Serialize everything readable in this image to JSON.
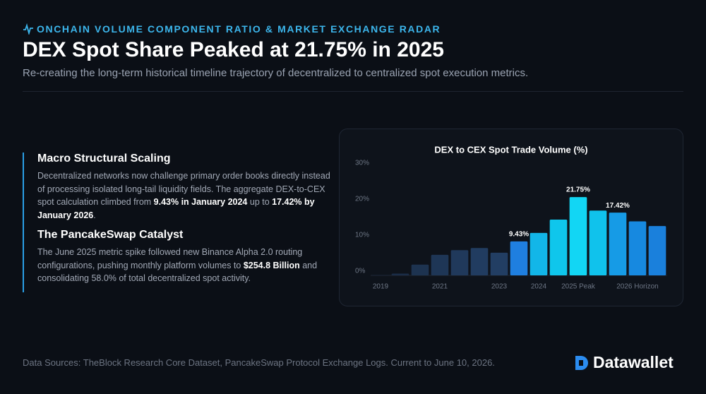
{
  "header": {
    "kicker": "ONCHAIN VOLUME COMPONENT RATIO & MARKET EXCHANGE RADAR",
    "title": "DEX Spot Share Peaked at 21.75% in 2025",
    "subtitle": "Re-creating the long-term historical timeline trajectory of decentralized to centralized spot execution metrics."
  },
  "sections": [
    {
      "heading": "Macro Structural Scaling",
      "runs": [
        {
          "text": "Decentralized networks now challenge primary order books directly instead of processing isolated long-tail liquidity fields. The aggregate DEX-to-CEX spot calculation climbed from ",
          "bold": false
        },
        {
          "text": "9.43% in January 2024",
          "bold": true
        },
        {
          "text": " up to ",
          "bold": false
        },
        {
          "text": "17.42% by January 2026",
          "bold": true
        },
        {
          "text": ".",
          "bold": false
        }
      ]
    },
    {
      "heading": "The PancakeSwap Catalyst",
      "runs": [
        {
          "text": "The June 2025 metric spike followed new Binance Alpha 2.0 routing configurations, pushing monthly platform volumes to ",
          "bold": false
        },
        {
          "text": "$254.8 Billion",
          "bold": true
        },
        {
          "text": " and consolidating 58.0% of total decentralized spot activity.",
          "bold": false
        }
      ]
    }
  ],
  "chart_data": {
    "type": "bar",
    "title": "DEX to CEX Spot Trade Volume (%)",
    "categories": [
      "2019",
      null,
      null,
      "2021",
      null,
      null,
      "2023",
      null,
      "2024",
      null,
      "2025 Peak",
      null,
      null,
      "2026 Horizon",
      null
    ],
    "values": [
      0.1,
      0.5,
      3,
      5.7,
      7,
      7.6,
      6.3,
      9.43,
      11.8,
      15.5,
      21.75,
      18,
      17.42,
      15,
      13.7
    ],
    "value_labels": [
      null,
      null,
      null,
      null,
      null,
      null,
      null,
      "9.43%",
      null,
      null,
      "21.75%",
      null,
      "17.42%",
      null,
      null
    ],
    "colors": [
      "#1a2a42",
      "#1b2d48",
      "#1d3350",
      "#1e3656",
      "#20395b",
      "#213c60",
      "#223e63",
      "#1f7fe0",
      "#12b6e8",
      "#0fc6ec",
      "#12d6f4",
      "#10c2ec",
      "#169be6",
      "#1789e0",
      "#1a80dc"
    ],
    "ylim": [
      0,
      30
    ],
    "yticks": [
      {
        "value": 0,
        "label": "0%"
      },
      {
        "value": 10,
        "label": "10%"
      },
      {
        "value": 20,
        "label": "20%"
      },
      {
        "value": 30,
        "label": "30%"
      }
    ],
    "grid": false
  },
  "footer": {
    "source": "Data Sources: TheBlock Research Core Dataset, PancakeSwap Protocol Exchange Logs. Current to June 10, 2026.",
    "brand": "Datawallet"
  }
}
